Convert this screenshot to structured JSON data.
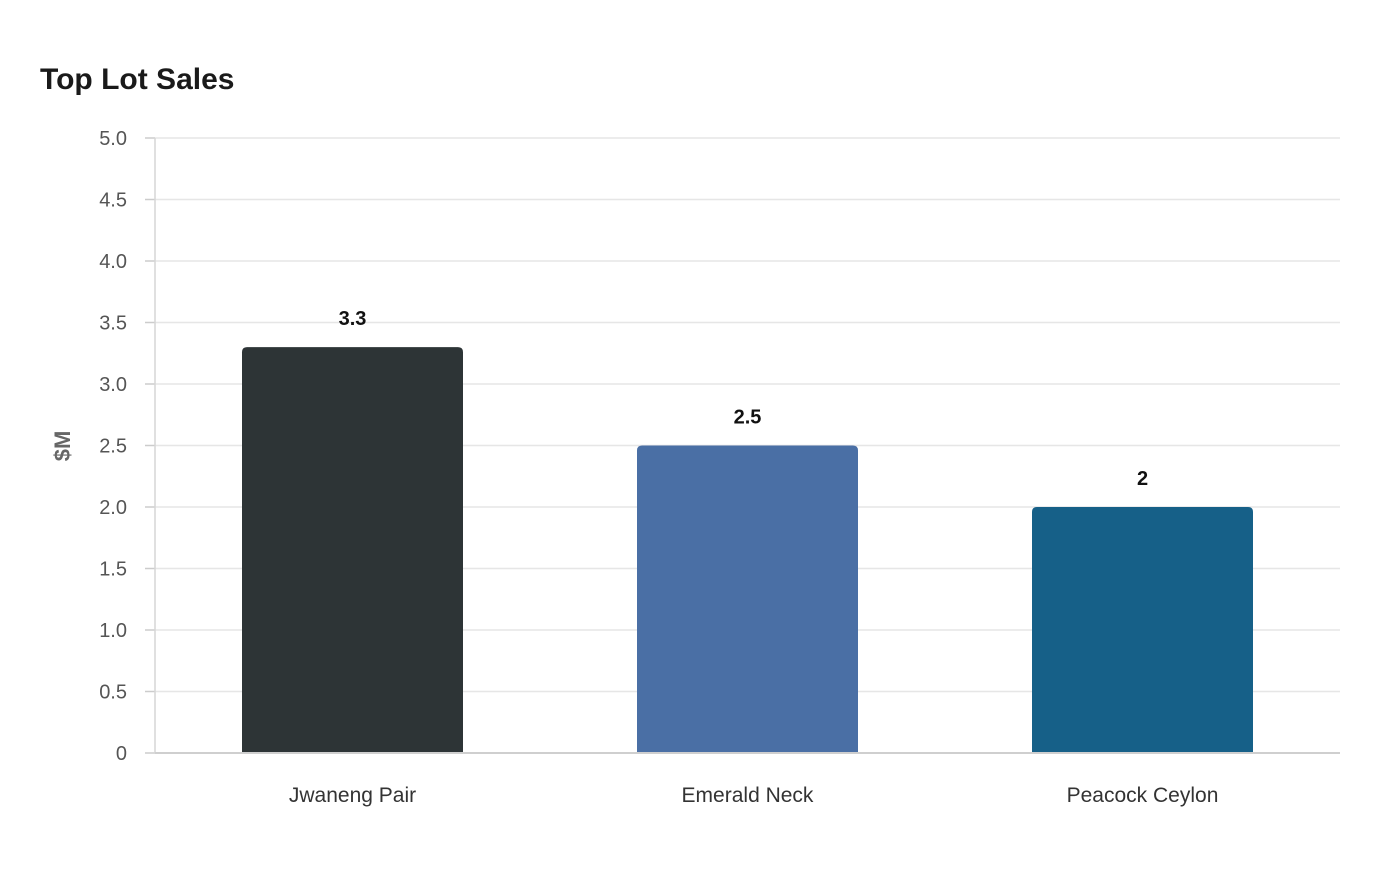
{
  "chart_data": {
    "type": "bar",
    "title": "Top Lot Sales",
    "xlabel": "",
    "ylabel": "$M",
    "categories": [
      "Jwaneng Pair",
      "Emerald Neck",
      "Peacock Ceylon"
    ],
    "values": [
      3.3,
      2.5,
      2
    ],
    "value_labels": [
      "3.3",
      "2.5",
      "2"
    ],
    "colors": [
      "#2d3436",
      "#4a6fa5",
      "#166088"
    ],
    "ylim": [
      0,
      5.0
    ],
    "yticks": [
      0,
      0.5,
      1.0,
      1.5,
      2.0,
      2.5,
      3.0,
      3.5,
      4.0,
      4.5,
      5.0
    ],
    "ytick_labels": [
      "0",
      "0.5",
      "1.0",
      "1.5",
      "2.0",
      "2.5",
      "3.0",
      "3.5",
      "4.0",
      "4.5",
      "5.0"
    ],
    "grid": true,
    "legend": "none"
  }
}
